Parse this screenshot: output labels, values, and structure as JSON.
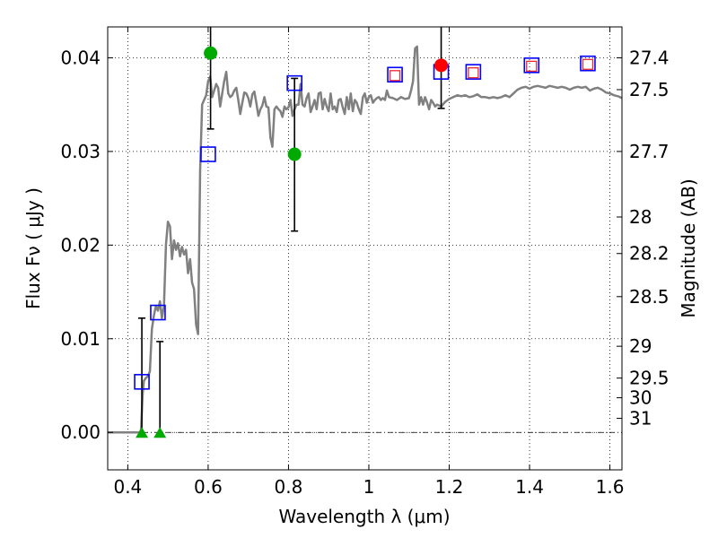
{
  "chart_data": {
    "type": "scatter",
    "xlabel": "Wavelength  λ (μm)",
    "ylabel": "Flux  Fν  ( μJy )",
    "y2label": "Magnitude (AB)",
    "xlim": [
      0.35,
      1.63
    ],
    "ylim": [
      -0.004,
      0.0433
    ],
    "grid": true,
    "x_ticks": [
      0.4,
      0.6,
      0.8,
      1.0,
      1.2,
      1.4,
      1.6
    ],
    "x_tick_labels": [
      "0.4",
      "0.6",
      "0.8",
      "1",
      "1.2",
      "1.4",
      "1.6"
    ],
    "y_ticks": [
      0.0,
      0.01,
      0.02,
      0.03,
      0.04
    ],
    "y_tick_labels": [
      "0.00",
      "0.01",
      "0.02",
      "0.03",
      "0.04"
    ],
    "y2_ticks": [
      {
        "label": "27.4",
        "flux": 0.04
      },
      {
        "label": "27.5",
        "flux": 0.0366
      },
      {
        "label": "27.7",
        "flux": 0.03
      },
      {
        "label": "28",
        "flux": 0.023
      },
      {
        "label": "28.2",
        "flux": 0.0191
      },
      {
        "label": "28.5",
        "flux": 0.0145
      },
      {
        "label": "29",
        "flux": 0.0092
      },
      {
        "label": "29.5",
        "flux": 0.0058
      },
      {
        "label": "30",
        "flux": 0.0037
      },
      {
        "label": "31",
        "flux": 0.0015
      }
    ],
    "series": [
      {
        "name": "model spectrum",
        "style": "line",
        "color": "#808080",
        "points": [
          [
            0.35,
            0.0
          ],
          [
            0.43,
            0.0
          ],
          [
            0.433,
            0.0003
          ],
          [
            0.437,
            0.004
          ],
          [
            0.44,
            0.0055
          ],
          [
            0.445,
            0.0058
          ],
          [
            0.45,
            0.006
          ],
          [
            0.455,
            0.0065
          ],
          [
            0.46,
            0.011
          ],
          [
            0.465,
            0.0125
          ],
          [
            0.47,
            0.0135
          ],
          [
            0.475,
            0.013
          ],
          [
            0.48,
            0.014
          ],
          [
            0.485,
            0.0122
          ],
          [
            0.49,
            0.0135
          ],
          [
            0.495,
            0.02
          ],
          [
            0.5,
            0.0225
          ],
          [
            0.505,
            0.022
          ],
          [
            0.51,
            0.0185
          ],
          [
            0.515,
            0.0205
          ],
          [
            0.52,
            0.0195
          ],
          [
            0.525,
            0.0202
          ],
          [
            0.53,
            0.0188
          ],
          [
            0.535,
            0.0198
          ],
          [
            0.54,
            0.019
          ],
          [
            0.545,
            0.0195
          ],
          [
            0.55,
            0.017
          ],
          [
            0.555,
            0.0185
          ],
          [
            0.56,
            0.016
          ],
          [
            0.565,
            0.0153
          ],
          [
            0.57,
            0.0115
          ],
          [
            0.575,
            0.0105
          ],
          [
            0.58,
            0.028
          ],
          [
            0.585,
            0.035
          ],
          [
            0.59,
            0.0355
          ],
          [
            0.595,
            0.036
          ],
          [
            0.6,
            0.0375
          ],
          [
            0.605,
            0.038
          ],
          [
            0.61,
            0.0358
          ],
          [
            0.615,
            0.0365
          ],
          [
            0.62,
            0.0372
          ],
          [
            0.625,
            0.0368
          ],
          [
            0.63,
            0.0348
          ],
          [
            0.635,
            0.0362
          ],
          [
            0.64,
            0.0375
          ],
          [
            0.645,
            0.0385
          ],
          [
            0.65,
            0.0362
          ],
          [
            0.655,
            0.0358
          ],
          [
            0.66,
            0.036
          ],
          [
            0.665,
            0.0365
          ],
          [
            0.67,
            0.0368
          ],
          [
            0.675,
            0.0355
          ],
          [
            0.68,
            0.034
          ],
          [
            0.685,
            0.0352
          ],
          [
            0.69,
            0.0363
          ],
          [
            0.695,
            0.0362
          ],
          [
            0.7,
            0.0357
          ],
          [
            0.705,
            0.0348
          ],
          [
            0.71,
            0.0361
          ],
          [
            0.715,
            0.0364
          ],
          [
            0.72,
            0.0352
          ],
          [
            0.725,
            0.0338
          ],
          [
            0.73,
            0.0345
          ],
          [
            0.735,
            0.0349
          ],
          [
            0.74,
            0.0358
          ],
          [
            0.745,
            0.0348
          ],
          [
            0.75,
            0.0347
          ],
          [
            0.755,
            0.0315
          ],
          [
            0.76,
            0.0305
          ],
          [
            0.765,
            0.0345
          ],
          [
            0.77,
            0.0348
          ],
          [
            0.775,
            0.0345
          ],
          [
            0.78,
            0.0343
          ],
          [
            0.785,
            0.0337
          ],
          [
            0.79,
            0.0348
          ],
          [
            0.795,
            0.0345
          ],
          [
            0.8,
            0.0347
          ],
          [
            0.805,
            0.0355
          ],
          [
            0.81,
            0.0338
          ],
          [
            0.815,
            0.0345
          ],
          [
            0.82,
            0.035
          ],
          [
            0.825,
            0.035
          ],
          [
            0.83,
            0.0372
          ],
          [
            0.835,
            0.035
          ],
          [
            0.84,
            0.0348
          ],
          [
            0.845,
            0.0357
          ],
          [
            0.85,
            0.0362
          ],
          [
            0.855,
            0.0342
          ],
          [
            0.86,
            0.0348
          ],
          [
            0.865,
            0.0355
          ],
          [
            0.87,
            0.0345
          ],
          [
            0.875,
            0.0362
          ],
          [
            0.88,
            0.0363
          ],
          [
            0.885,
            0.0345
          ],
          [
            0.89,
            0.0356
          ],
          [
            0.895,
            0.0348
          ],
          [
            0.9,
            0.0343
          ],
          [
            0.905,
            0.0362
          ],
          [
            0.91,
            0.0345
          ],
          [
            0.915,
            0.0348
          ],
          [
            0.92,
            0.0342
          ],
          [
            0.925,
            0.0355
          ],
          [
            0.93,
            0.0356
          ],
          [
            0.935,
            0.0347
          ],
          [
            0.94,
            0.034
          ],
          [
            0.945,
            0.0358
          ],
          [
            0.95,
            0.0345
          ],
          [
            0.955,
            0.0362
          ],
          [
            0.96,
            0.0343
          ],
          [
            0.965,
            0.0355
          ],
          [
            0.97,
            0.0352
          ],
          [
            0.975,
            0.0345
          ],
          [
            0.98,
            0.034
          ],
          [
            0.985,
            0.0358
          ],
          [
            0.99,
            0.0362
          ],
          [
            0.995,
            0.0352
          ],
          [
            1.0,
            0.0358
          ],
          [
            1.005,
            0.036
          ],
          [
            1.01,
            0.0352
          ],
          [
            1.015,
            0.0355
          ],
          [
            1.02,
            0.0357
          ],
          [
            1.025,
            0.0358
          ],
          [
            1.03,
            0.0355
          ],
          [
            1.035,
            0.0357
          ],
          [
            1.04,
            0.0355
          ],
          [
            1.045,
            0.0365
          ],
          [
            1.05,
            0.0358
          ],
          [
            1.06,
            0.0357
          ],
          [
            1.07,
            0.0355
          ],
          [
            1.08,
            0.0358
          ],
          [
            1.09,
            0.0356
          ],
          [
            1.1,
            0.0357
          ],
          [
            1.105,
            0.0365
          ],
          [
            1.11,
            0.0375
          ],
          [
            1.115,
            0.041
          ],
          [
            1.12,
            0.0412
          ],
          [
            1.125,
            0.035
          ],
          [
            1.13,
            0.0358
          ],
          [
            1.135,
            0.035
          ],
          [
            1.14,
            0.0358
          ],
          [
            1.145,
            0.0352
          ],
          [
            1.15,
            0.0345
          ],
          [
            1.155,
            0.0355
          ],
          [
            1.16,
            0.0352
          ],
          [
            1.165,
            0.0348
          ],
          [
            1.17,
            0.035
          ],
          [
            1.18,
            0.0348
          ],
          [
            1.19,
            0.0353
          ],
          [
            1.2,
            0.0356
          ],
          [
            1.21,
            0.0358
          ],
          [
            1.22,
            0.036
          ],
          [
            1.23,
            0.0359
          ],
          [
            1.24,
            0.036
          ],
          [
            1.25,
            0.0358
          ],
          [
            1.26,
            0.0359
          ],
          [
            1.27,
            0.0361
          ],
          [
            1.28,
            0.0358
          ],
          [
            1.29,
            0.0358
          ],
          [
            1.3,
            0.0357
          ],
          [
            1.31,
            0.0358
          ],
          [
            1.32,
            0.0357
          ],
          [
            1.33,
            0.0358
          ],
          [
            1.34,
            0.036
          ],
          [
            1.35,
            0.0358
          ],
          [
            1.36,
            0.0362
          ],
          [
            1.37,
            0.0366
          ],
          [
            1.38,
            0.0368
          ],
          [
            1.39,
            0.0369
          ],
          [
            1.4,
            0.0367
          ],
          [
            1.41,
            0.0369
          ],
          [
            1.42,
            0.037
          ],
          [
            1.43,
            0.0369
          ],
          [
            1.44,
            0.0368
          ],
          [
            1.45,
            0.037
          ],
          [
            1.46,
            0.0369
          ],
          [
            1.47,
            0.0368
          ],
          [
            1.48,
            0.0369
          ],
          [
            1.49,
            0.0368
          ],
          [
            1.5,
            0.0366
          ],
          [
            1.51,
            0.0368
          ],
          [
            1.52,
            0.0369
          ],
          [
            1.53,
            0.0368
          ],
          [
            1.54,
            0.0369
          ],
          [
            1.55,
            0.0365
          ],
          [
            1.56,
            0.0367
          ],
          [
            1.57,
            0.0368
          ],
          [
            1.58,
            0.0366
          ],
          [
            1.59,
            0.0363
          ],
          [
            1.6,
            0.0362
          ],
          [
            1.61,
            0.036
          ],
          [
            1.62,
            0.0359
          ],
          [
            1.63,
            0.0357
          ]
        ]
      },
      {
        "name": "model photometry (blue squares)",
        "style": "open-square",
        "color": "#0000ff",
        "points": [
          [
            0.435,
            0.0054
          ],
          [
            0.475,
            0.0128
          ],
          [
            0.6,
            0.0297
          ],
          [
            0.815,
            0.0373
          ],
          [
            1.065,
            0.0382
          ],
          [
            1.18,
            0.0385
          ],
          [
            1.26,
            0.0385
          ],
          [
            1.405,
            0.0392
          ],
          [
            1.545,
            0.0394
          ]
        ]
      },
      {
        "name": "observed photometry (red squares)",
        "style": "open-square-small",
        "color": "#e8292e",
        "points": [
          [
            1.065,
            0.0381
          ],
          [
            1.26,
            0.0384
          ],
          [
            1.405,
            0.0391
          ],
          [
            1.545,
            0.0393
          ]
        ]
      },
      {
        "name": "observed detections (green circles)",
        "style": "filled-circle",
        "color": "#00aa00",
        "points": [
          [
            0.606,
            0.0405
          ],
          [
            0.815,
            0.0297
          ]
        ]
      },
      {
        "name": "observed detection (red circle)",
        "style": "filled-circle",
        "color": "#ff0000",
        "points": [
          [
            1.18,
            0.0392
          ]
        ]
      },
      {
        "name": "upper limits (green triangles)",
        "style": "filled-triangle",
        "color": "#00aa00",
        "points": [
          [
            0.435,
            0.0
          ],
          [
            0.48,
            0.0
          ]
        ]
      }
    ],
    "error_bars": [
      {
        "x": 0.435,
        "low": 0.0,
        "high": 0.0122
      },
      {
        "x": 0.48,
        "low": 0.0,
        "high": 0.0097
      },
      {
        "x": 0.606,
        "low": 0.0324,
        "high": 0.0433
      },
      {
        "x": 0.815,
        "low": 0.0215,
        "high": 0.0378
      },
      {
        "x": 1.18,
        "low": 0.0346,
        "high": 0.0433
      }
    ]
  }
}
